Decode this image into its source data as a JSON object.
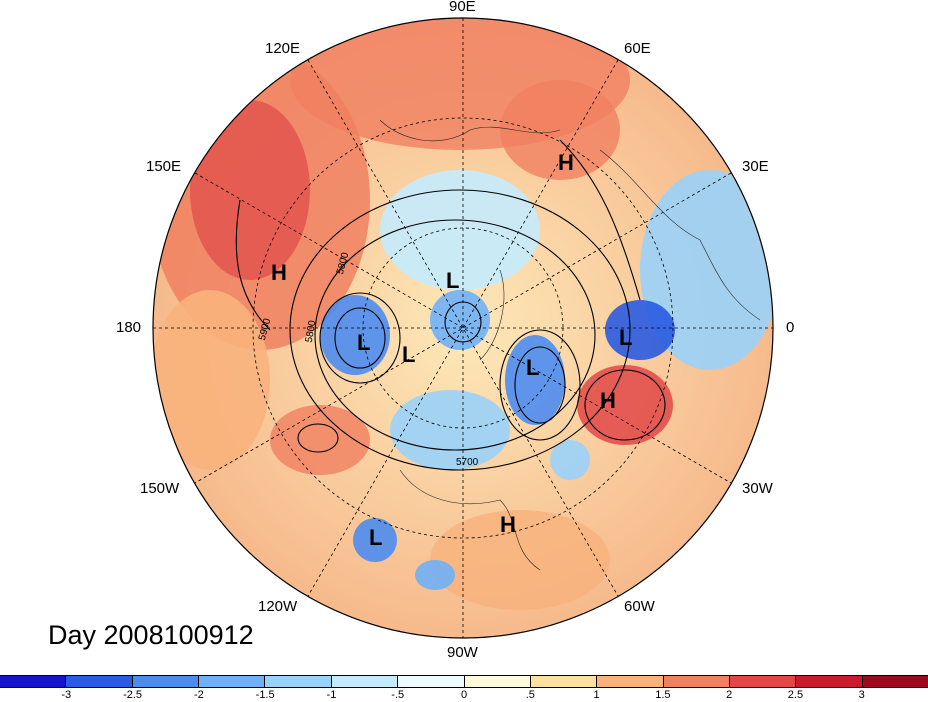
{
  "title": "Day 2008100912",
  "longitude_labels": [
    "90E",
    "60E",
    "30E",
    "0",
    "30W",
    "60W",
    "90W",
    "120W",
    "150W",
    "180",
    "150E",
    "120E"
  ],
  "contour_labels": [
    "5800",
    "5900",
    "5800",
    "5700"
  ],
  "systems": [
    {
      "type": "H",
      "region": "north pacific / east asia"
    },
    {
      "type": "H",
      "region": "russia"
    },
    {
      "type": "L",
      "region": "arctic ocean"
    },
    {
      "type": "L",
      "region": "north pole"
    },
    {
      "type": "L",
      "region": "bering / alaska"
    },
    {
      "type": "L",
      "region": "canada"
    },
    {
      "type": "L",
      "region": "greenland sea"
    },
    {
      "type": "L",
      "region": "north atlantic east"
    },
    {
      "type": "H",
      "region": "north atlantic"
    },
    {
      "type": "H",
      "region": "caribbean"
    },
    {
      "type": "L",
      "region": "east pacific"
    }
  ],
  "colorbar": {
    "ticks": [
      "-3",
      "-2.5",
      "-2",
      "-1.5",
      "-1",
      "-.5",
      "0",
      ".5",
      "1",
      "1.5",
      "2",
      "2.5",
      "3"
    ],
    "colors": [
      "#1414c8",
      "#2a5be0",
      "#4c8cef",
      "#6fb0f6",
      "#9ad2fa",
      "#c4ebfd",
      "#ecfbff",
      "#fffbd8",
      "#fde0a0",
      "#f8b27c",
      "#f08060",
      "#e04848",
      "#c81c2c",
      "#9c0a1e"
    ]
  }
}
